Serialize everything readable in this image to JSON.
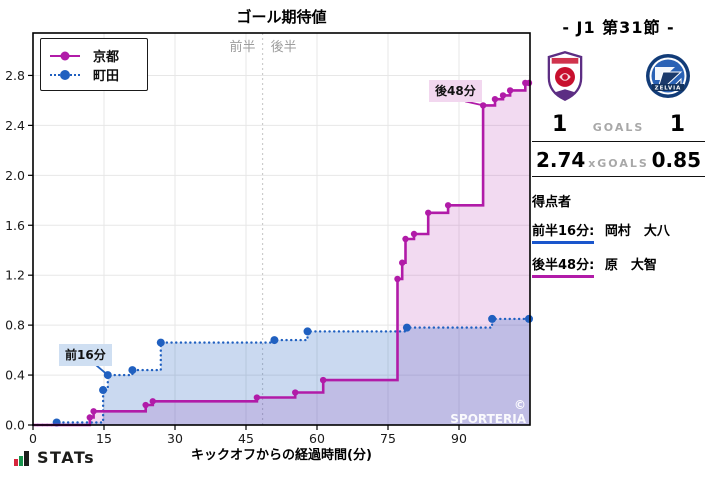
{
  "chart": {
    "title": "ゴール期待値",
    "watermark": "© SPORTERIA",
    "half_labels": {
      "first": "前半",
      "second": "後半"
    }
  },
  "chart_data": {
    "type": "line",
    "subtype": "step-after-xg-timeline",
    "title": "ゴール期待値",
    "xlabel": "キックオフからの経過時間(分)",
    "ylabel": "",
    "xlim": [
      0,
      105
    ],
    "ylim": [
      0,
      3.14
    ],
    "xticks": [
      0,
      15,
      30,
      45,
      60,
      75,
      90
    ],
    "yticks": [
      0.0,
      0.4,
      0.8,
      1.2,
      1.6,
      2.0,
      2.4,
      2.8
    ],
    "grid": true,
    "legend_position": "upper-left",
    "halftime_x": 48.5,
    "series": [
      {
        "name": "京都",
        "color": "#b11ba8",
        "line_style": "solid",
        "fill_opacity": 0.16,
        "total_xg": 2.74,
        "points": [
          [
            0,
            0
          ],
          [
            12,
            0.06
          ],
          [
            12.8,
            0.11
          ],
          [
            23.8,
            0.16
          ],
          [
            25.3,
            0.19
          ],
          [
            47.3,
            0.22
          ],
          [
            55.4,
            0.26
          ],
          [
            61.3,
            0.36
          ],
          [
            77,
            1.17
          ],
          [
            78,
            1.3
          ],
          [
            78.7,
            1.49
          ],
          [
            80.5,
            1.53
          ],
          [
            83.5,
            1.7
          ],
          [
            87.7,
            1.76
          ],
          [
            95.1,
            2.56
          ],
          [
            97.6,
            2.61
          ],
          [
            99.3,
            2.64
          ],
          [
            100.8,
            2.68
          ],
          [
            104,
            2.74
          ]
        ]
      },
      {
        "name": "町田",
        "color": "#2060c0",
        "line_style": "dotted",
        "fill_opacity": 0.24,
        "total_xg": 0.85,
        "points": [
          [
            0,
            0
          ],
          [
            5,
            0.02
          ],
          [
            14.8,
            0.28
          ],
          [
            15.8,
            0.4
          ],
          [
            21,
            0.44
          ],
          [
            27,
            0.66
          ],
          [
            51,
            0.68
          ],
          [
            58,
            0.75
          ],
          [
            79,
            0.78
          ],
          [
            97,
            0.85
          ]
        ]
      }
    ],
    "annotations": [
      {
        "text": "前16分",
        "x": 15.8,
        "y": 0.4,
        "series": "町田"
      },
      {
        "text": "後48分",
        "x": 95.1,
        "y": 2.56,
        "series": "京都"
      }
    ]
  },
  "scoreboard": {
    "title": "- J1 第31節 -",
    "away_logo_text": "ZELVIA",
    "goals": {
      "home": "1",
      "label": "GOALS",
      "away": "1"
    },
    "xgoals": {
      "home": "2.74",
      "label": "xGOALS",
      "away": "0.85"
    },
    "scorers": {
      "heading": "得点者",
      "items": [
        {
          "time": "前半16分:",
          "name": "岡村　大八",
          "color": "#1a56cc"
        },
        {
          "time": "後半48分:",
          "name": "原　大智",
          "color": "#b11ba8"
        }
      ]
    }
  },
  "footer": {
    "brand": "STATs"
  }
}
